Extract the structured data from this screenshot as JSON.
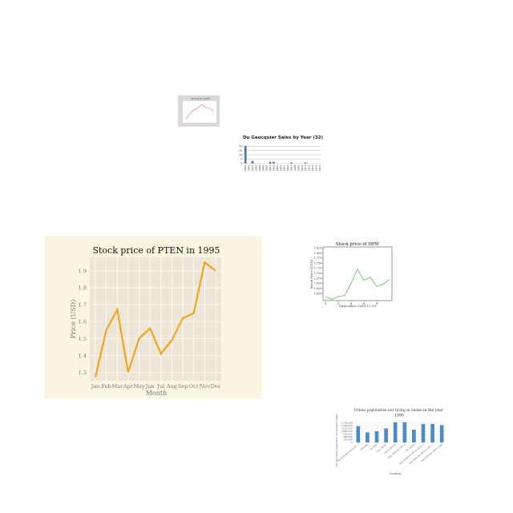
{
  "chart_data": [
    {
      "id": "pten",
      "type": "line",
      "title": "Stock price of PTEN in 1995",
      "xlabel": "Month",
      "ylabel": "Price (USD)",
      "categories": [
        "Jan",
        "Feb",
        "Mar",
        "Apr",
        "May",
        "Jun",
        "Jul",
        "Aug",
        "Sep",
        "Oct",
        "Nov",
        "Dec"
      ],
      "values": [
        1.27,
        1.55,
        1.67,
        1.3,
        1.5,
        1.56,
        1.41,
        1.49,
        1.62,
        1.65,
        1.95,
        1.9
      ],
      "ylim": [
        1.25,
        1.98
      ],
      "yticks": [
        "1.3",
        "1.4",
        "1.5",
        "1.6",
        "1.7",
        "1.8",
        "1.9"
      ],
      "ytick_values": [
        1.3,
        1.4,
        1.5,
        1.6,
        1.7,
        1.8,
        1.9
      ],
      "grid": true,
      "colors": {
        "line": "#f4a21f",
        "figure_bg": "#fdf5e2",
        "axes_bg": "#ede6d6",
        "grid": "#ffffff"
      }
    },
    {
      "id": "dpw",
      "type": "line",
      "title": "Stock price of DPW",
      "xlabel": "Days since 2010-12-30",
      "ylabel": "Stock Price (USD)",
      "x": [
        0,
        1,
        2,
        3,
        4,
        5,
        6,
        7,
        8,
        9,
        10
      ],
      "values": [
        1.585,
        1.57,
        1.585,
        1.59,
        1.65,
        1.72,
        1.665,
        1.68,
        1.635,
        1.645,
        1.67
      ],
      "xticks": [
        "0",
        "2",
        "4",
        "6",
        "8"
      ],
      "xtick_values": [
        0,
        2,
        4,
        6,
        8
      ],
      "yticks": [
        "1.600",
        "1.625",
        "1.650",
        "1.675",
        "1.700",
        "1.725",
        "1.750",
        "1.775",
        "1.800",
        "1.825"
      ],
      "ytick_values": [
        1.6,
        1.625,
        1.65,
        1.675,
        1.7,
        1.725,
        1.75,
        1.775,
        1.8,
        1.825
      ],
      "ylim": [
        1.565,
        1.83
      ],
      "colors": {
        "line": "#77c776"
      }
    },
    {
      "id": "gaucquier",
      "type": "bar",
      "title": "Du Gaucquier Sales by Year (32)",
      "categories": [
        "1894",
        "1895",
        "1896",
        "1897",
        "1898",
        "1899",
        "1900",
        "1901",
        "1902",
        "1903",
        "1904",
        "1905",
        "1906",
        "1907",
        "1908",
        "1909",
        "1910",
        "1911",
        "1912",
        "1913",
        "1914",
        "1915"
      ],
      "values": [
        20,
        0,
        3,
        0,
        0,
        0,
        0,
        2,
        2,
        0,
        0,
        0,
        0,
        1,
        0,
        0,
        0,
        1,
        0,
        0,
        0,
        0
      ],
      "yticks": [
        "0",
        "5",
        "10",
        "15",
        "20"
      ],
      "ytick_values": [
        0,
        5,
        10,
        15,
        20
      ],
      "ylim": [
        0,
        22
      ],
      "colors": {
        "bar": "#4c72b0"
      }
    },
    {
      "id": "thumbnail",
      "type": "line",
      "title": "Stock price of ABC",
      "values": [
        1.2,
        1.5,
        1.7,
        1.8,
        2.0,
        1.85,
        1.8,
        1.65
      ],
      "ylim": [
        1.0,
        2.2
      ],
      "colors": {
        "line": "#e8666b",
        "bg": "#d9d9d9"
      }
    },
    {
      "id": "slums",
      "type": "bar",
      "title": "Urban population not living in slums in the year 1990",
      "xlabel": "Country",
      "ylabel": "No. of Urban population not living in slums",
      "categories": [
        "Fiji (Intergovernment...)",
        "Rwanda",
        "Senegal",
        "Cabo Verde",
        "Haiti (Africa)",
        "Sub-Saharan Africa",
        "Sri Lanka",
        "Sub-Saharan Africa (excl...)",
        "Sub-Saharan Africa (IDA...)",
        "Sub-Saharan Africa (all)"
      ],
      "values": [
        1450000,
        900000,
        1000000,
        1250000,
        1800000,
        1800000,
        1150000,
        1650000,
        1650000,
        1550000
      ],
      "ylim": [
        0,
        2000000
      ],
      "yticks": [
        "0",
        "250,000",
        "500,000",
        "750,000",
        "1,000,000",
        "1,250,000",
        "1,500,000",
        "1,750,000"
      ],
      "ytick_values": [
        0,
        250000,
        500000,
        750000,
        1000000,
        1250000,
        1500000,
        1750000
      ],
      "colors": {
        "bar": "#4c8ac9"
      }
    }
  ]
}
